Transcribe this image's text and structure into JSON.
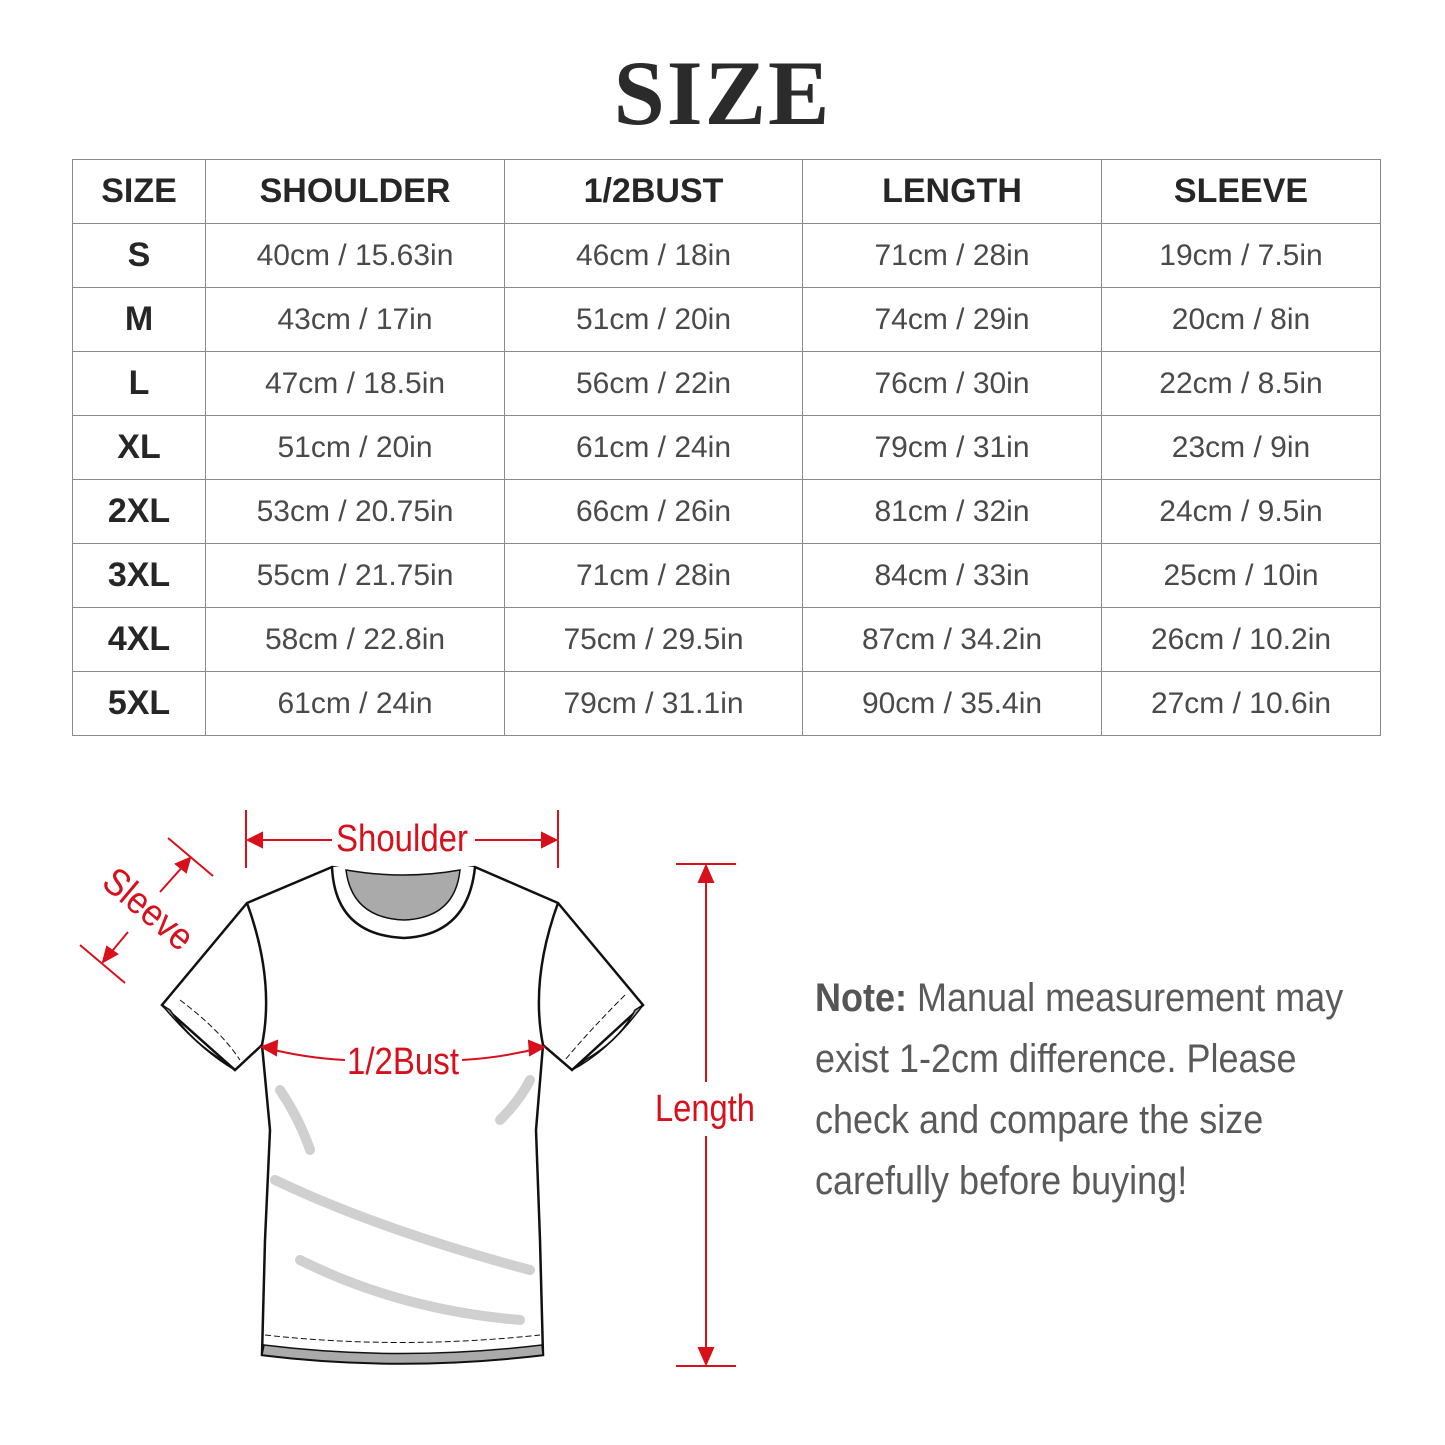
{
  "title": "SIZE",
  "table": {
    "headers": [
      "SIZE",
      "SHOULDER",
      "1/2BUST",
      "LENGTH",
      "SLEEVE"
    ],
    "rows": [
      [
        "S",
        "40cm / 15.63in",
        "46cm / 18in",
        "71cm / 28in",
        "19cm / 7.5in"
      ],
      [
        "M",
        "43cm / 17in",
        "51cm / 20in",
        "74cm / 29in",
        "20cm / 8in"
      ],
      [
        "L",
        "47cm / 18.5in",
        "56cm / 22in",
        "76cm / 30in",
        "22cm / 8.5in"
      ],
      [
        "XL",
        "51cm / 20in",
        "61cm / 24in",
        "79cm / 31in",
        "23cm / 9in"
      ],
      [
        "2XL",
        "53cm / 20.75in",
        "66cm / 26in",
        "81cm / 32in",
        "24cm / 9.5in"
      ],
      [
        "3XL",
        "55cm / 21.75in",
        "71cm / 28in",
        "84cm / 33in",
        "25cm / 10in"
      ],
      [
        "4XL",
        "58cm / 22.8in",
        "75cm / 29.5in",
        "87cm / 34.2in",
        "26cm / 10.2in"
      ],
      [
        "5XL",
        "61cm / 24in",
        "79cm / 31.1in",
        "90cm / 35.4in",
        "27cm / 10.6in"
      ]
    ]
  },
  "diagram": {
    "shoulder_label": "Shoulder",
    "sleeve_label": "Sleeve",
    "bust_label": "1/2Bust",
    "length_label": "Length",
    "icon": "t-shirt-icon",
    "accent_color": "#d8101c"
  },
  "note": {
    "label": "Note:",
    "text": "Manual measurement may exist 1-2cm difference. Please check and compare the size carefully before buying!"
  }
}
